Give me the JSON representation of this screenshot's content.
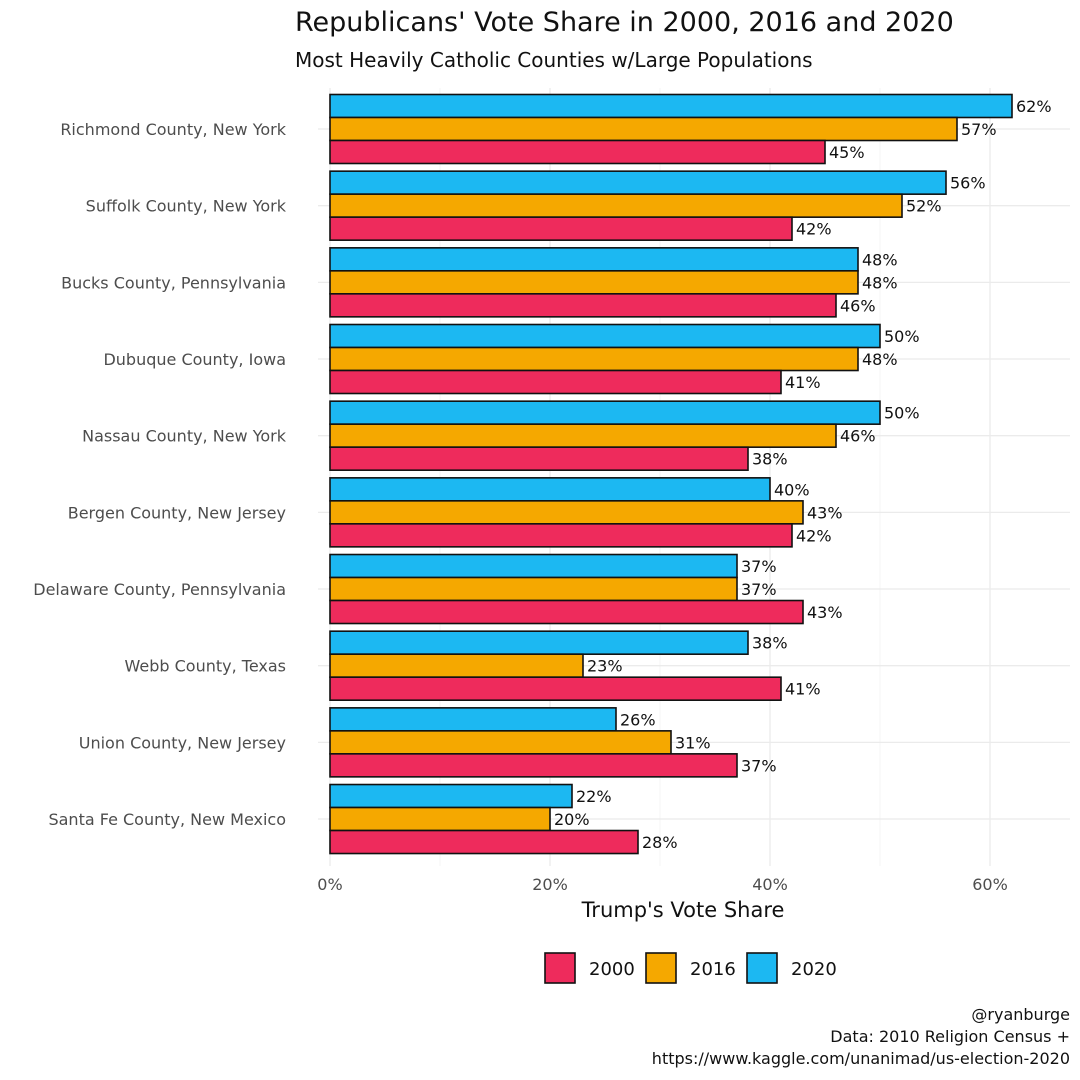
{
  "chart_data": {
    "type": "bar",
    "orientation": "horizontal",
    "title": "Republicans' Vote Share in 2000, 2016 and 2020",
    "subtitle": "Most Heavily Catholic Counties w/Large Populations",
    "xlabel": "Trump's Vote Share",
    "ylabel": "",
    "xlim": [
      0,
      0.6744
    ],
    "x_ticks": [
      {
        "value": 0,
        "label": "0%"
      },
      {
        "value": 0.2,
        "label": "20%"
      },
      {
        "value": 0.4,
        "label": "40%"
      },
      {
        "value": 0.6,
        "label": "60%"
      }
    ],
    "grid": true,
    "legend_position": "bottom",
    "categories": [
      "Richmond County, New York",
      "Suffolk County, New York",
      "Bucks County, Pennsylvania",
      "Dubuque County, Iowa",
      "Nassau County, New York",
      "Bergen County, New Jersey",
      "Delaware County, Pennsylvania",
      "Webb County, Texas",
      "Union County, New Jersey",
      "Santa Fe County, New Mexico"
    ],
    "series": [
      {
        "name": "2020",
        "color": "#1CB8F2",
        "values": [
          0.62,
          0.56,
          0.48,
          0.5,
          0.5,
          0.4,
          0.37,
          0.38,
          0.26,
          0.22
        ],
        "labels": [
          "62%",
          "56%",
          "48%",
          "50%",
          "50%",
          "40%",
          "37%",
          "38%",
          "26%",
          "22%"
        ]
      },
      {
        "name": "2016",
        "color": "#F5A800",
        "values": [
          0.57,
          0.52,
          0.48,
          0.48,
          0.46,
          0.43,
          0.37,
          0.23,
          0.31,
          0.2
        ],
        "labels": [
          "57%",
          "52%",
          "48%",
          "48%",
          "46%",
          "43%",
          "37%",
          "23%",
          "31%",
          "20%"
        ]
      },
      {
        "name": "2000",
        "color": "#EE2B5C",
        "values": [
          0.45,
          0.42,
          0.46,
          0.41,
          0.38,
          0.42,
          0.43,
          0.41,
          0.37,
          0.28
        ],
        "labels": [
          "45%",
          "42%",
          "46%",
          "41%",
          "38%",
          "42%",
          "43%",
          "41%",
          "37%",
          "28%"
        ]
      }
    ],
    "legend": [
      {
        "name": "2000",
        "color": "#EE2B5C"
      },
      {
        "name": "2016",
        "color": "#F5A800"
      },
      {
        "name": "2020",
        "color": "#1CB8F2"
      }
    ],
    "caption": [
      "@ryanburge",
      "Data: 2010 Religion Census +",
      "https://www.kaggle.com/unanimad/us-election-2020"
    ]
  }
}
